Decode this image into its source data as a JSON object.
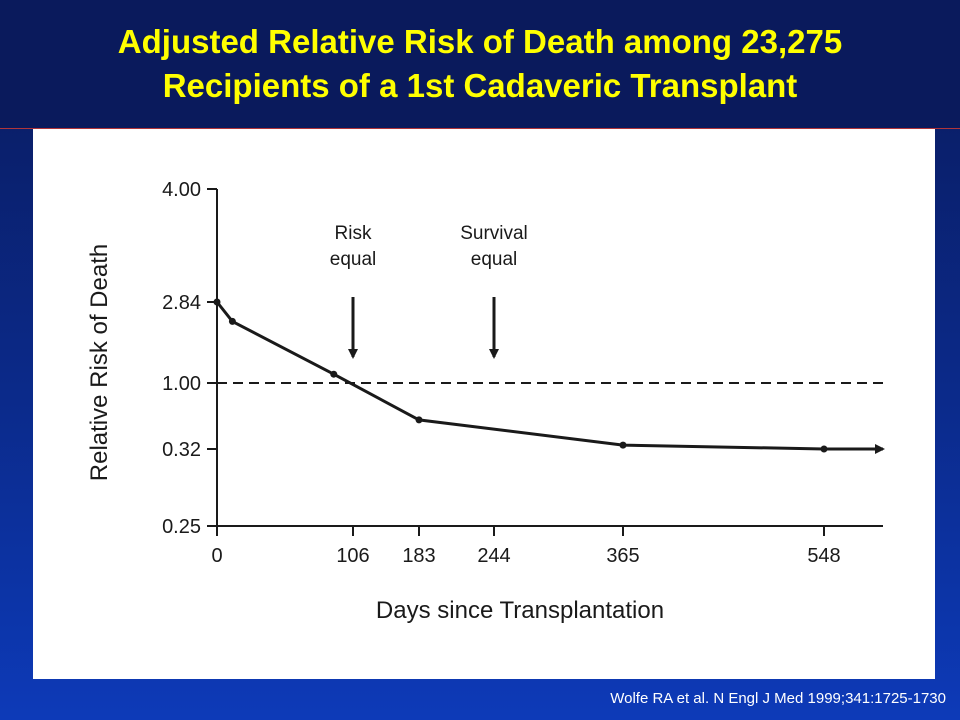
{
  "slide": {
    "title_line1": "Adjusted Relative Risk of Death among 23,275",
    "title_line2": "Recipients of a 1st Cadaveric Transplant",
    "citation": "Wolfe RA et al. N Engl J Med 1999;341:1725-1730",
    "title_color": "#ffff00",
    "background_color": "#0b2a8a"
  },
  "chart_data": {
    "type": "line",
    "title": "",
    "xlabel": "Days since Transplantation",
    "ylabel": "Relative Risk of Death",
    "x_ticks": [
      "0",
      "106",
      "183",
      "244",
      "365",
      "548"
    ],
    "y_ticks": [
      "4.00",
      "2.84",
      "1.00",
      "0.32",
      "0.25"
    ],
    "series": [
      {
        "x": [
          0,
          12,
          91,
          183,
          365,
          548,
          610
        ],
        "y": [
          2.84,
          2.4,
          1.2,
          0.62,
          0.36,
          0.32,
          0.32
        ]
      }
    ],
    "reference_line": {
      "y": 1.0,
      "style": "dashed"
    },
    "annotations": [
      {
        "lines": [
          "Risk",
          "equal"
        ],
        "x": 106
      },
      {
        "lines": [
          "Survival",
          "equal"
        ],
        "x": 244
      }
    ],
    "xlim": [
      0,
      610
    ],
    "grid": false,
    "legend": "none"
  }
}
